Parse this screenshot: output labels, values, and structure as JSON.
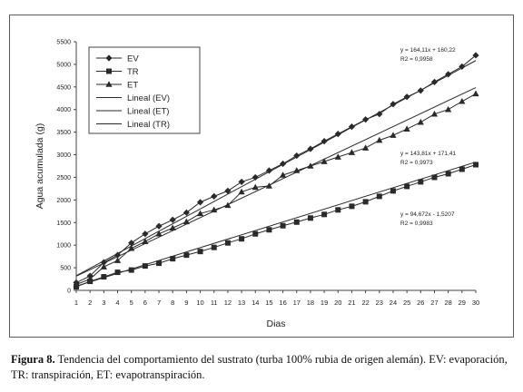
{
  "caption": {
    "label": "Figura 8.",
    "text": " Tendencia del comportamiento del sustrato (turba 100% rubia de origen alemán). EV: evaporación, TR: transpiración, ET: evapotranspiración."
  },
  "chart_data": {
    "type": "line",
    "title": "",
    "xlabel": "Dias",
    "ylabel": "Agua acumulada (g)",
    "xlim": [
      1,
      30
    ],
    "ylim": [
      0,
      5500
    ],
    "x": [
      1,
      2,
      3,
      4,
      5,
      6,
      7,
      8,
      9,
      10,
      11,
      12,
      13,
      14,
      15,
      16,
      17,
      18,
      19,
      20,
      21,
      22,
      23,
      24,
      25,
      26,
      27,
      28,
      29,
      30
    ],
    "x_tick_labels": [
      "1",
      "2",
      "3",
      "4",
      "5",
      "6",
      "7",
      "8",
      "9",
      "10",
      "11",
      "12",
      "13",
      "14",
      "15",
      "16",
      "17",
      "18",
      "19",
      "20",
      "21",
      "22",
      "23",
      "24",
      "25",
      "26",
      "27",
      "28",
      "29",
      "30"
    ],
    "y_ticks": [
      0,
      500,
      1000,
      1500,
      2000,
      2500,
      3000,
      3500,
      4000,
      4500,
      5000,
      5500
    ],
    "grid": false,
    "legend_position": "top-left",
    "series": [
      {
        "name": "EV",
        "marker": "diamond",
        "values": [
          170,
          320,
          620,
          780,
          1050,
          1250,
          1420,
          1560,
          1720,
          1950,
          2080,
          2200,
          2400,
          2500,
          2650,
          2800,
          2980,
          3130,
          3300,
          3460,
          3620,
          3780,
          3900,
          4120,
          4280,
          4420,
          4610,
          4780,
          4950,
          5200
        ]
      },
      {
        "name": "TR",
        "marker": "square",
        "values": [
          80,
          200,
          300,
          400,
          450,
          540,
          600,
          700,
          780,
          860,
          950,
          1050,
          1140,
          1250,
          1340,
          1430,
          1510,
          1600,
          1680,
          1780,
          1860,
          1960,
          2080,
          2200,
          2300,
          2400,
          2500,
          2580,
          2680,
          2780
        ]
      },
      {
        "name": "ET",
        "marker": "triangle",
        "values": [
          130,
          250,
          520,
          660,
          930,
          1080,
          1250,
          1380,
          1520,
          1700,
          1780,
          1880,
          2180,
          2280,
          2310,
          2550,
          2650,
          2750,
          2850,
          2950,
          3050,
          3150,
          3320,
          3430,
          3570,
          3720,
          3900,
          4000,
          4180,
          4350
        ]
      }
    ],
    "trendlines": [
      {
        "name": "Lineal (EV)",
        "slope": 164.11,
        "intercept": 160.22,
        "equation": "y = 164,11x + 160,22",
        "r2": "R2 = 0,9958"
      },
      {
        "name": "Lineal (ET)",
        "slope": 143.81,
        "intercept": 171.41,
        "equation": "y = 143,81x + 171,41",
        "r2": "R2 = 0,9973"
      },
      {
        "name": "Lineal (TR)",
        "slope": 94.672,
        "intercept": -1.5207,
        "equation": "y = 94,672x - 1,5207",
        "r2": "R2 = 0,9983"
      }
    ],
    "colors": {
      "line": "#2a2a2a",
      "frame": "#444444"
    }
  }
}
